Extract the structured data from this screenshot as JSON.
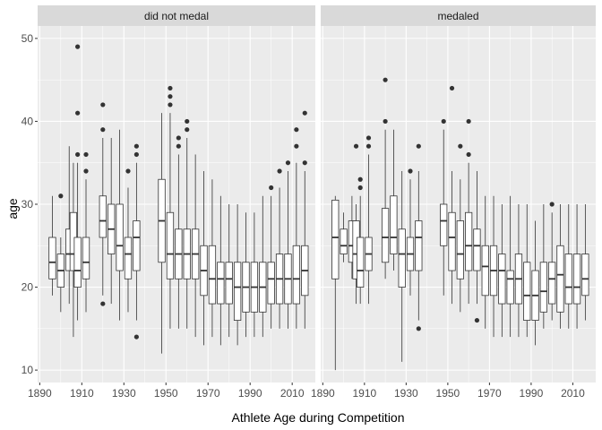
{
  "chart_data": {
    "type": "boxplot",
    "xlabel": "Athlete Age during Competition",
    "ylabel": "age",
    "xlim": [
      1889,
      2021
    ],
    "ylim": [
      8.5,
      51.5
    ],
    "x_ticks": [
      1890,
      1910,
      1930,
      1950,
      1970,
      1990,
      2010
    ],
    "y_ticks": [
      10,
      20,
      30,
      40,
      50
    ],
    "grid": true,
    "legend": "none",
    "colors": {
      "panel_background": "#ebebeb",
      "grid_major": "#ffffff",
      "strip_background": "#d9d9d9",
      "box_fill": "#ffffff",
      "box_line": "#333333",
      "outlier": "#333333"
    },
    "facets": [
      {
        "label": "did not medal",
        "boxes": [
          {
            "x": 1896,
            "lw": 19,
            "q1": 21,
            "med": 23,
            "q3": 26,
            "uw": 31,
            "out": []
          },
          {
            "x": 1900,
            "lw": 17,
            "q1": 20,
            "med": 22,
            "q3": 24,
            "uw": 26,
            "out": [
              31
            ]
          },
          {
            "x": 1904,
            "lw": 18,
            "q1": 22,
            "med": 24,
            "q3": 27,
            "uw": 37,
            "out": []
          },
          {
            "x": 1906,
            "lw": 14,
            "q1": 22,
            "med": 24,
            "q3": 29,
            "uw": 35,
            "out": []
          },
          {
            "x": 1908,
            "lw": 16,
            "q1": 20,
            "med": 22,
            "q3": 26,
            "uw": 35,
            "out": [
              36,
              41,
              49
            ]
          },
          {
            "x": 1912,
            "lw": 17,
            "q1": 21,
            "med": 23,
            "q3": 26,
            "uw": 33,
            "out": [
              34,
              36
            ]
          },
          {
            "x": 1920,
            "lw": 19,
            "q1": 26,
            "med": 28,
            "q3": 31,
            "uw": 38,
            "out": [
              18,
              39,
              42
            ]
          },
          {
            "x": 1924,
            "lw": 18,
            "q1": 24,
            "med": 27,
            "q3": 30,
            "uw": 38,
            "out": []
          },
          {
            "x": 1928,
            "lw": 16,
            "q1": 22,
            "med": 25,
            "q3": 30,
            "uw": 39,
            "out": []
          },
          {
            "x": 1932,
            "lw": 17,
            "q1": 21,
            "med": 24,
            "q3": 26,
            "uw": 32,
            "out": [
              34
            ]
          },
          {
            "x": 1936,
            "lw": 16,
            "q1": 22,
            "med": 26,
            "q3": 28,
            "uw": 35,
            "out": [
              14,
              36,
              37
            ]
          },
          {
            "x": 1948,
            "lw": 12,
            "q1": 23,
            "med": 28,
            "q3": 33,
            "uw": 41,
            "out": []
          },
          {
            "x": 1952,
            "lw": 15,
            "q1": 21,
            "med": 24,
            "q3": 29,
            "uw": 41,
            "out": [
              42,
              43,
              44
            ]
          },
          {
            "x": 1956,
            "lw": 15,
            "q1": 21,
            "med": 24,
            "q3": 27,
            "uw": 36,
            "out": [
              37,
              38
            ]
          },
          {
            "x": 1960,
            "lw": 15,
            "q1": 21,
            "med": 24,
            "q3": 27,
            "uw": 38,
            "out": [
              39,
              40
            ]
          },
          {
            "x": 1964,
            "lw": 14,
            "q1": 21,
            "med": 24,
            "q3": 27,
            "uw": 36,
            "out": []
          },
          {
            "x": 1968,
            "lw": 13,
            "q1": 19,
            "med": 22,
            "q3": 25,
            "uw": 34,
            "out": []
          },
          {
            "x": 1972,
            "lw": 14,
            "q1": 18,
            "med": 21,
            "q3": 25,
            "uw": 33,
            "out": []
          },
          {
            "x": 1976,
            "lw": 13,
            "q1": 18,
            "med": 21,
            "q3": 23,
            "uw": 31,
            "out": []
          },
          {
            "x": 1980,
            "lw": 14,
            "q1": 18,
            "med": 21,
            "q3": 23,
            "uw": 30,
            "out": []
          },
          {
            "x": 1984,
            "lw": 13,
            "q1": 16,
            "med": 20,
            "q3": 23,
            "uw": 30,
            "out": []
          },
          {
            "x": 1988,
            "lw": 14,
            "q1": 17,
            "med": 20,
            "q3": 23,
            "uw": 29,
            "out": []
          },
          {
            "x": 1992,
            "lw": 14,
            "q1": 17,
            "med": 20,
            "q3": 23,
            "uw": 29,
            "out": []
          },
          {
            "x": 1996,
            "lw": 14,
            "q1": 17,
            "med": 20,
            "q3": 23,
            "uw": 31,
            "out": []
          },
          {
            "x": 2000,
            "lw": 15,
            "q1": 18,
            "med": 21,
            "q3": 23,
            "uw": 31,
            "out": [
              32
            ]
          },
          {
            "x": 2004,
            "lw": 15,
            "q1": 18,
            "med": 21,
            "q3": 24,
            "uw": 32,
            "out": [
              34
            ]
          },
          {
            "x": 2008,
            "lw": 15,
            "q1": 18,
            "med": 21,
            "q3": 24,
            "uw": 34,
            "out": [
              35
            ]
          },
          {
            "x": 2012,
            "lw": 15,
            "q1": 18,
            "med": 21,
            "q3": 25,
            "uw": 35,
            "out": [
              37,
              39
            ]
          },
          {
            "x": 2016,
            "lw": 15,
            "q1": 19,
            "med": 22,
            "q3": 25,
            "uw": 34,
            "out": [
              35,
              41
            ]
          }
        ]
      },
      {
        "label": "medaled",
        "boxes": [
          {
            "x": 1896,
            "lw": 10,
            "q1": 21,
            "med": 26,
            "q3": 30.5,
            "uw": 31,
            "out": []
          },
          {
            "x": 1900,
            "lw": 23,
            "q1": 24,
            "med": 25,
            "q3": 27,
            "uw": 29,
            "out": []
          },
          {
            "x": 1904,
            "lw": 21,
            "q1": 23,
            "med": 25,
            "q3": 28,
            "uw": 31,
            "out": []
          },
          {
            "x": 1906,
            "lw": 18,
            "q1": 21,
            "med": 24,
            "q3": 28,
            "uw": 30,
            "out": [
              37
            ]
          },
          {
            "x": 1908,
            "lw": 18,
            "q1": 20,
            "med": 22,
            "q3": 26,
            "uw": 31,
            "out": [
              32,
              33
            ]
          },
          {
            "x": 1912,
            "lw": 18,
            "q1": 22,
            "med": 24,
            "q3": 26,
            "uw": 36,
            "out": [
              37,
              38
            ]
          },
          {
            "x": 1920,
            "lw": 21,
            "q1": 23,
            "med": 26,
            "q3": 29.5,
            "uw": 39,
            "out": [
              40,
              45
            ]
          },
          {
            "x": 1924,
            "lw": 22,
            "q1": 24,
            "med": 26,
            "q3": 31,
            "uw": 39,
            "out": []
          },
          {
            "x": 1928,
            "lw": 11,
            "q1": 20,
            "med": 24,
            "q3": 27,
            "uw": 34,
            "out": []
          },
          {
            "x": 1932,
            "lw": 19,
            "q1": 22,
            "med": 24,
            "q3": 26,
            "uw": 33,
            "out": [
              34
            ]
          },
          {
            "x": 1936,
            "lw": 16,
            "q1": 22,
            "med": 26,
            "q3": 28,
            "uw": 34,
            "out": [
              15,
              37
            ]
          },
          {
            "x": 1948,
            "lw": 19,
            "q1": 25,
            "med": 28,
            "q3": 30,
            "uw": 39,
            "out": [
              40
            ]
          },
          {
            "x": 1952,
            "lw": 18,
            "q1": 22,
            "med": 26,
            "q3": 29,
            "uw": 34,
            "out": [
              44
            ]
          },
          {
            "x": 1956,
            "lw": 17,
            "q1": 21,
            "med": 24,
            "q3": 28,
            "uw": 33,
            "out": [
              37
            ]
          },
          {
            "x": 1960,
            "lw": 18,
            "q1": 22,
            "med": 25,
            "q3": 29,
            "uw": 35,
            "out": [
              36,
              40
            ]
          },
          {
            "x": 1964,
            "lw": 18,
            "q1": 22,
            "med": 25,
            "q3": 27,
            "uw": 34,
            "out": [
              16
            ]
          },
          {
            "x": 1968,
            "lw": 15,
            "q1": 19,
            "med": 22.5,
            "q3": 25,
            "uw": 31,
            "out": []
          },
          {
            "x": 1972,
            "lw": 14,
            "q1": 19,
            "med": 22,
            "q3": 25,
            "uw": 31,
            "out": []
          },
          {
            "x": 1976,
            "lw": 14,
            "q1": 18,
            "med": 22,
            "q3": 24,
            "uw": 30,
            "out": []
          },
          {
            "x": 1980,
            "lw": 14,
            "q1": 18,
            "med": 21,
            "q3": 22,
            "uw": 31,
            "out": []
          },
          {
            "x": 1984,
            "lw": 14,
            "q1": 18,
            "med": 21,
            "q3": 24,
            "uw": 30,
            "out": []
          },
          {
            "x": 1988,
            "lw": 14,
            "q1": 16,
            "med": 19,
            "q3": 23,
            "uw": 30,
            "out": []
          },
          {
            "x": 1992,
            "lw": 13,
            "q1": 16,
            "med": 19,
            "q3": 22,
            "uw": 28,
            "out": []
          },
          {
            "x": 1996,
            "lw": 15,
            "q1": 17,
            "med": 19.5,
            "q3": 23,
            "uw": 30,
            "out": []
          },
          {
            "x": 2000,
            "lw": 16,
            "q1": 18,
            "med": 21,
            "q3": 23,
            "uw": 29,
            "out": [
              30
            ]
          },
          {
            "x": 2004,
            "lw": 15,
            "q1": 17,
            "med": 21.5,
            "q3": 25,
            "uw": 30,
            "out": []
          },
          {
            "x": 2008,
            "lw": 15,
            "q1": 18,
            "med": 20,
            "q3": 24,
            "uw": 30,
            "out": []
          },
          {
            "x": 2012,
            "lw": 15,
            "q1": 18,
            "med": 20,
            "q3": 24,
            "uw": 30,
            "out": []
          },
          {
            "x": 2016,
            "lw": 16,
            "q1": 19,
            "med": 21,
            "q3": 24,
            "uw": 30,
            "out": []
          }
        ]
      }
    ]
  }
}
